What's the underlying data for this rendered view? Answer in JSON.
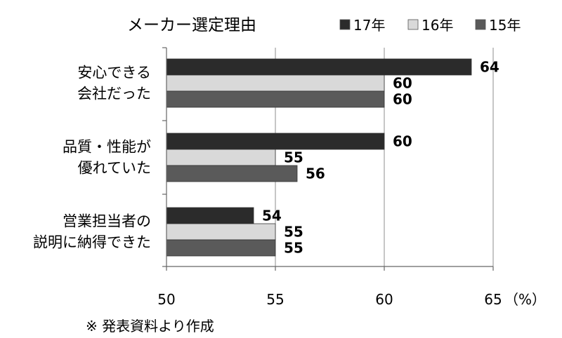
{
  "chart_data": {
    "type": "bar",
    "orientation": "horizontal",
    "title": "メーカー選定理由",
    "categories": [
      [
        "安心できる",
        "会社だった"
      ],
      [
        "品質・性能が",
        "優れていた"
      ],
      [
        "営業担当者の",
        "説明に納得できた"
      ]
    ],
    "series": [
      {
        "name": "17年",
        "color": "#2b2b2b",
        "values": [
          64,
          60,
          54
        ]
      },
      {
        "name": "16年",
        "color": "#d9d9d9",
        "values": [
          60,
          55,
          55
        ]
      },
      {
        "name": "15年",
        "color": "#5a5a5a",
        "values": [
          60,
          56,
          55
        ]
      }
    ],
    "xlim": [
      50,
      65
    ],
    "xticks": [
      50,
      55,
      60,
      65
    ],
    "unit_label": "（%）",
    "grid": "vertical",
    "legend": "top-right",
    "note": "※  発表資料より作成"
  }
}
